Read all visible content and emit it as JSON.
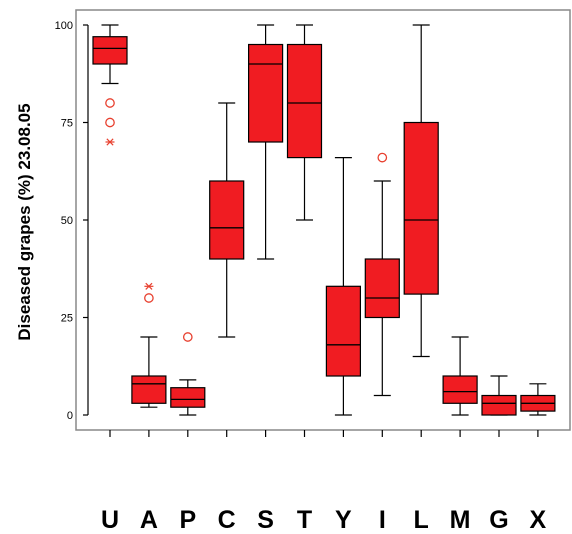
{
  "chart_data": {
    "type": "boxplot",
    "ylabel": "Diseased grapes (%) 23.08.05",
    "ylim": [
      0,
      100
    ],
    "yticks": [
      0,
      25,
      50,
      75,
      100
    ],
    "grid": false,
    "colors": {
      "box_fill": "#f01c22",
      "box_edge": "#000000",
      "outlier": "#e8402f",
      "frame": "#888888"
    },
    "categories": [
      "U",
      "A",
      "P",
      "C",
      "S",
      "T",
      "Y",
      "I",
      "L",
      "M",
      "G",
      "X"
    ],
    "boxes": [
      {
        "category": "U",
        "min": 85,
        "q1": 90,
        "median": 94,
        "q3": 97,
        "max": 100,
        "outliers": [
          80,
          75
        ],
        "extremes": [
          70
        ]
      },
      {
        "category": "A",
        "min": 2,
        "q1": 3,
        "median": 8,
        "q3": 10,
        "max": 20,
        "outliers": [
          30
        ],
        "extremes": [
          33
        ]
      },
      {
        "category": "P",
        "min": 0,
        "q1": 2,
        "median": 4,
        "q3": 7,
        "max": 9,
        "outliers": [
          20
        ],
        "extremes": []
      },
      {
        "category": "C",
        "min": 20,
        "q1": 40,
        "median": 48,
        "q3": 60,
        "max": 80,
        "outliers": [],
        "extremes": []
      },
      {
        "category": "S",
        "min": 40,
        "q1": 70,
        "median": 90,
        "q3": 95,
        "max": 100,
        "outliers": [],
        "extremes": []
      },
      {
        "category": "T",
        "min": 50,
        "q1": 66,
        "median": 80,
        "q3": 95,
        "max": 100,
        "outliers": [],
        "extremes": []
      },
      {
        "category": "Y",
        "min": 0,
        "q1": 10,
        "median": 18,
        "q3": 33,
        "max": 66,
        "outliers": [],
        "extremes": []
      },
      {
        "category": "I",
        "min": 5,
        "q1": 25,
        "median": 30,
        "q3": 40,
        "max": 60,
        "outliers": [
          66
        ],
        "extremes": []
      },
      {
        "category": "L",
        "min": 15,
        "q1": 31,
        "median": 50,
        "q3": 75,
        "max": 100,
        "outliers": [],
        "extremes": []
      },
      {
        "category": "M",
        "min": 0,
        "q1": 3,
        "median": 6,
        "q3": 10,
        "max": 20,
        "outliers": [],
        "extremes": []
      },
      {
        "category": "G",
        "min": 0,
        "q1": 0,
        "median": 3,
        "q3": 5,
        "max": 10,
        "outliers": [],
        "extremes": []
      },
      {
        "category": "X",
        "min": 0,
        "q1": 1,
        "median": 3,
        "q3": 5,
        "max": 8,
        "outliers": [],
        "extremes": []
      }
    ]
  }
}
